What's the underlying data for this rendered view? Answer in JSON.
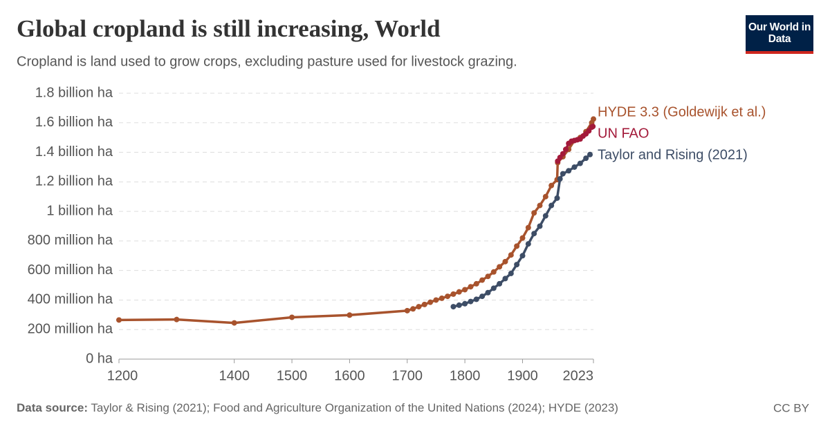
{
  "chart_data": {
    "type": "line",
    "title": "Global cropland is still increasing, World",
    "subtitle": "Cropland is land used to grow crops, excluding pasture used for livestock grazing.",
    "logo": "Our World in Data",
    "source_label": "Data source:",
    "source": "Taylor & Rising (2021); Food and Agriculture Organization of the United Nations (2024); HYDE (2023)",
    "license": "CC BY",
    "xlim": [
      1200,
      2023
    ],
    "xticks": [
      1200,
      1400,
      1500,
      1600,
      1700,
      1800,
      1900,
      2023
    ],
    "ylim": [
      0,
      1800000000
    ],
    "yticks": [
      {
        "value": 0,
        "label": "0 ha"
      },
      {
        "value": 200000000,
        "label": "200 million ha"
      },
      {
        "value": 400000000,
        "label": "400 million ha"
      },
      {
        "value": 600000000,
        "label": "600 million ha"
      },
      {
        "value": 800000000,
        "label": "800 million ha"
      },
      {
        "value": 1000000000,
        "label": "1 billion ha"
      },
      {
        "value": 1200000000,
        "label": "1.2 billion ha"
      },
      {
        "value": 1400000000,
        "label": "1.4 billion ha"
      },
      {
        "value": 1600000000,
        "label": "1.6 billion ha"
      },
      {
        "value": 1800000000,
        "label": "1.8 billion ha"
      }
    ],
    "grid": true,
    "series": [
      {
        "name": "HYDE 3.3 (Goldewijk et al.)",
        "color": "#a8532d",
        "x": [
          1200,
          1300,
          1400,
          1500,
          1600,
          1700,
          1710,
          1720,
          1730,
          1740,
          1750,
          1760,
          1770,
          1780,
          1790,
          1800,
          1810,
          1820,
          1830,
          1840,
          1850,
          1860,
          1870,
          1880,
          1890,
          1900,
          1910,
          1920,
          1930,
          1940,
          1950,
          1960,
          1961,
          1970,
          1980,
          1990,
          2000,
          2010,
          2020,
          2023
        ],
        "values": [
          265000000,
          268000000,
          245000000,
          283000000,
          298000000,
          328000000,
          340000000,
          355000000,
          370000000,
          385000000,
          400000000,
          412000000,
          425000000,
          440000000,
          455000000,
          470000000,
          490000000,
          510000000,
          535000000,
          560000000,
          590000000,
          625000000,
          660000000,
          705000000,
          765000000,
          820000000,
          890000000,
          990000000,
          1040000000,
          1100000000,
          1175000000,
          1215000000,
          1330000000,
          1370000000,
          1420000000,
          1480000000,
          1500000000,
          1540000000,
          1600000000,
          1625000000
        ]
      },
      {
        "name": "UN FAO",
        "color": "#a31a3a",
        "x": [
          1961,
          1965,
          1970,
          1975,
          1980,
          1985,
          1990,
          1995,
          2000,
          2005,
          2010,
          2015,
          2020,
          2022
        ],
        "values": [
          1340000000,
          1365000000,
          1390000000,
          1420000000,
          1460000000,
          1475000000,
          1480000000,
          1485000000,
          1490000000,
          1510000000,
          1525000000,
          1545000000,
          1570000000,
          1575000000
        ]
      },
      {
        "name": "Taylor and Rising (2021)",
        "color": "#3d4d66",
        "x": [
          1780,
          1790,
          1800,
          1810,
          1820,
          1830,
          1840,
          1850,
          1860,
          1870,
          1880,
          1890,
          1900,
          1910,
          1920,
          1930,
          1940,
          1950,
          1960,
          1965,
          1970,
          1980,
          1990,
          2000,
          2010,
          2017
        ],
        "values": [
          355000000,
          365000000,
          375000000,
          390000000,
          405000000,
          425000000,
          450000000,
          480000000,
          510000000,
          545000000,
          580000000,
          640000000,
          700000000,
          780000000,
          850000000,
          900000000,
          970000000,
          1040000000,
          1090000000,
          1220000000,
          1255000000,
          1275000000,
          1300000000,
          1325000000,
          1360000000,
          1385000000
        ]
      }
    ]
  }
}
